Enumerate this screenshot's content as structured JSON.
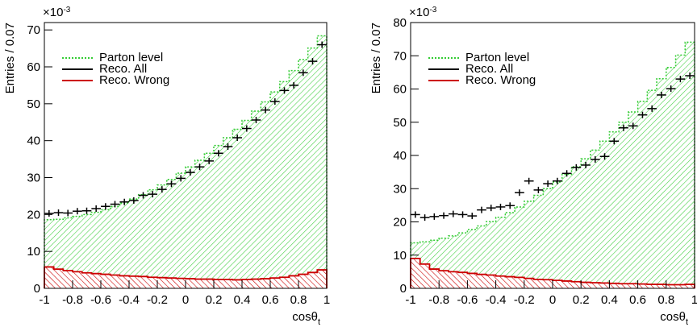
{
  "chart_data": [
    {
      "type": "histogram",
      "ylabel": "Entries / 0.07",
      "xlabel": "cosθ",
      "xlabel_sub": "t",
      "y_multiplier": "×10",
      "y_multiplier_exp": "-3",
      "bins": [
        -1,
        -0.9333,
        -0.8667,
        -0.8,
        -0.7333,
        -0.6667,
        -0.6,
        -0.5333,
        -0.4667,
        -0.4,
        -0.3333,
        -0.2667,
        -0.2,
        -0.1333,
        -0.0667,
        0,
        0.0667,
        0.1333,
        0.2,
        0.2667,
        0.3333,
        0.4,
        0.4667,
        0.5333,
        0.6,
        0.6667,
        0.7333,
        0.8,
        0.8667,
        0.9333,
        1
      ],
      "xlim": [
        -1,
        1
      ],
      "xticks": [
        -1,
        -0.8,
        -0.6,
        -0.4,
        -0.2,
        0,
        0.2,
        0.4,
        0.6,
        0.8,
        1
      ],
      "ylim": [
        0,
        72
      ],
      "yticks": [
        0,
        10,
        20,
        30,
        40,
        50,
        60,
        70
      ],
      "legend": "upper left",
      "series": [
        {
          "name": "Parton level",
          "color": "#33cc33",
          "style": "hatched",
          "values": [
            18.6,
            18.7,
            19.1,
            19.5,
            20.0,
            20.6,
            21.3,
            22.2,
            23.1,
            24.2,
            25.4,
            26.7,
            28.0,
            29.5,
            31.2,
            32.9,
            34.7,
            36.6,
            38.7,
            40.8,
            43.1,
            45.5,
            48.0,
            50.5,
            53.2,
            56.0,
            59.0,
            62.0,
            65.1,
            68.4
          ]
        },
        {
          "name": "Reco. All",
          "color": "#000000",
          "style": "points",
          "values": [
            20.3,
            20.5,
            20.4,
            20.9,
            21.0,
            21.6,
            22.2,
            22.8,
            23.4,
            23.8,
            25.2,
            25.5,
            26.8,
            28.3,
            29.8,
            31.4,
            32.9,
            34.5,
            36.6,
            38.4,
            40.8,
            43.3,
            45.6,
            48.3,
            50.6,
            53.6,
            55.0,
            58.4,
            61.5,
            66.0
          ]
        },
        {
          "name": "Reco. Wrong",
          "color": "#cc0000",
          "style": "hatched",
          "values": [
            5.8,
            5.2,
            4.8,
            4.5,
            4.2,
            4.0,
            3.8,
            3.6,
            3.4,
            3.3,
            3.2,
            3.0,
            2.9,
            2.8,
            2.7,
            2.6,
            2.5,
            2.5,
            2.4,
            2.4,
            2.3,
            2.4,
            2.5,
            2.6,
            2.8,
            3.0,
            3.4,
            3.8,
            4.3,
            5.0
          ]
        }
      ]
    },
    {
      "type": "histogram",
      "ylabel": "Entries / 0.07",
      "xlabel": "cosθ",
      "xlabel_sub": "t",
      "y_multiplier": "×10",
      "y_multiplier_exp": "-3",
      "bins": [
        -1,
        -0.9333,
        -0.8667,
        -0.8,
        -0.7333,
        -0.6667,
        -0.6,
        -0.5333,
        -0.4667,
        -0.4,
        -0.3333,
        -0.2667,
        -0.2,
        -0.1333,
        -0.0667,
        0,
        0.0667,
        0.1333,
        0.2,
        0.2667,
        0.3333,
        0.4,
        0.4667,
        0.5333,
        0.6,
        0.6667,
        0.7333,
        0.8,
        0.8667,
        0.9333,
        1
      ],
      "xlim": [
        -1,
        1
      ],
      "xticks": [
        -1,
        -0.8,
        -0.6,
        -0.4,
        -0.2,
        0,
        0.2,
        0.4,
        0.6,
        0.8,
        1
      ],
      "ylim": [
        0,
        80
      ],
      "yticks": [
        0,
        10,
        20,
        30,
        40,
        50,
        60,
        70,
        80
      ],
      "legend": "upper left",
      "series": [
        {
          "name": "Parton level",
          "color": "#33cc33",
          "style": "hatched",
          "values": [
            13.7,
            14.0,
            14.5,
            15.1,
            15.8,
            16.7,
            17.7,
            18.8,
            20.1,
            21.4,
            22.8,
            24.5,
            26.2,
            28.0,
            30.0,
            32.0,
            34.3,
            36.6,
            39.0,
            41.6,
            44.3,
            47.1,
            50.0,
            53.1,
            56.3,
            59.6,
            63.1,
            66.5,
            70.2,
            74.1
          ]
        },
        {
          "name": "Reco. All",
          "color": "#000000",
          "style": "points",
          "values": [
            22.2,
            21.3,
            21.6,
            21.9,
            22.4,
            22.2,
            21.8,
            23.6,
            24.2,
            24.5,
            24.9,
            28.8,
            32.3,
            29.6,
            31.5,
            32.3,
            34.6,
            36.4,
            37.1,
            38.8,
            39.7,
            44.3,
            48.3,
            48.9,
            52.2,
            54.1,
            58.2,
            60.1,
            63.0,
            64.0
          ]
        },
        {
          "name": "Reco. Wrong",
          "color": "#cc0000",
          "style": "hatched",
          "values": [
            9.0,
            7.3,
            5.8,
            5.3,
            5.0,
            4.8,
            4.5,
            4.2,
            4.0,
            3.7,
            3.5,
            3.3,
            3.0,
            2.7,
            2.6,
            2.4,
            2.2,
            2.0,
            1.8,
            1.7,
            1.6,
            1.5,
            1.4,
            1.4,
            1.3,
            1.2,
            1.2,
            1.1,
            1.1,
            1.2
          ]
        }
      ]
    }
  ]
}
